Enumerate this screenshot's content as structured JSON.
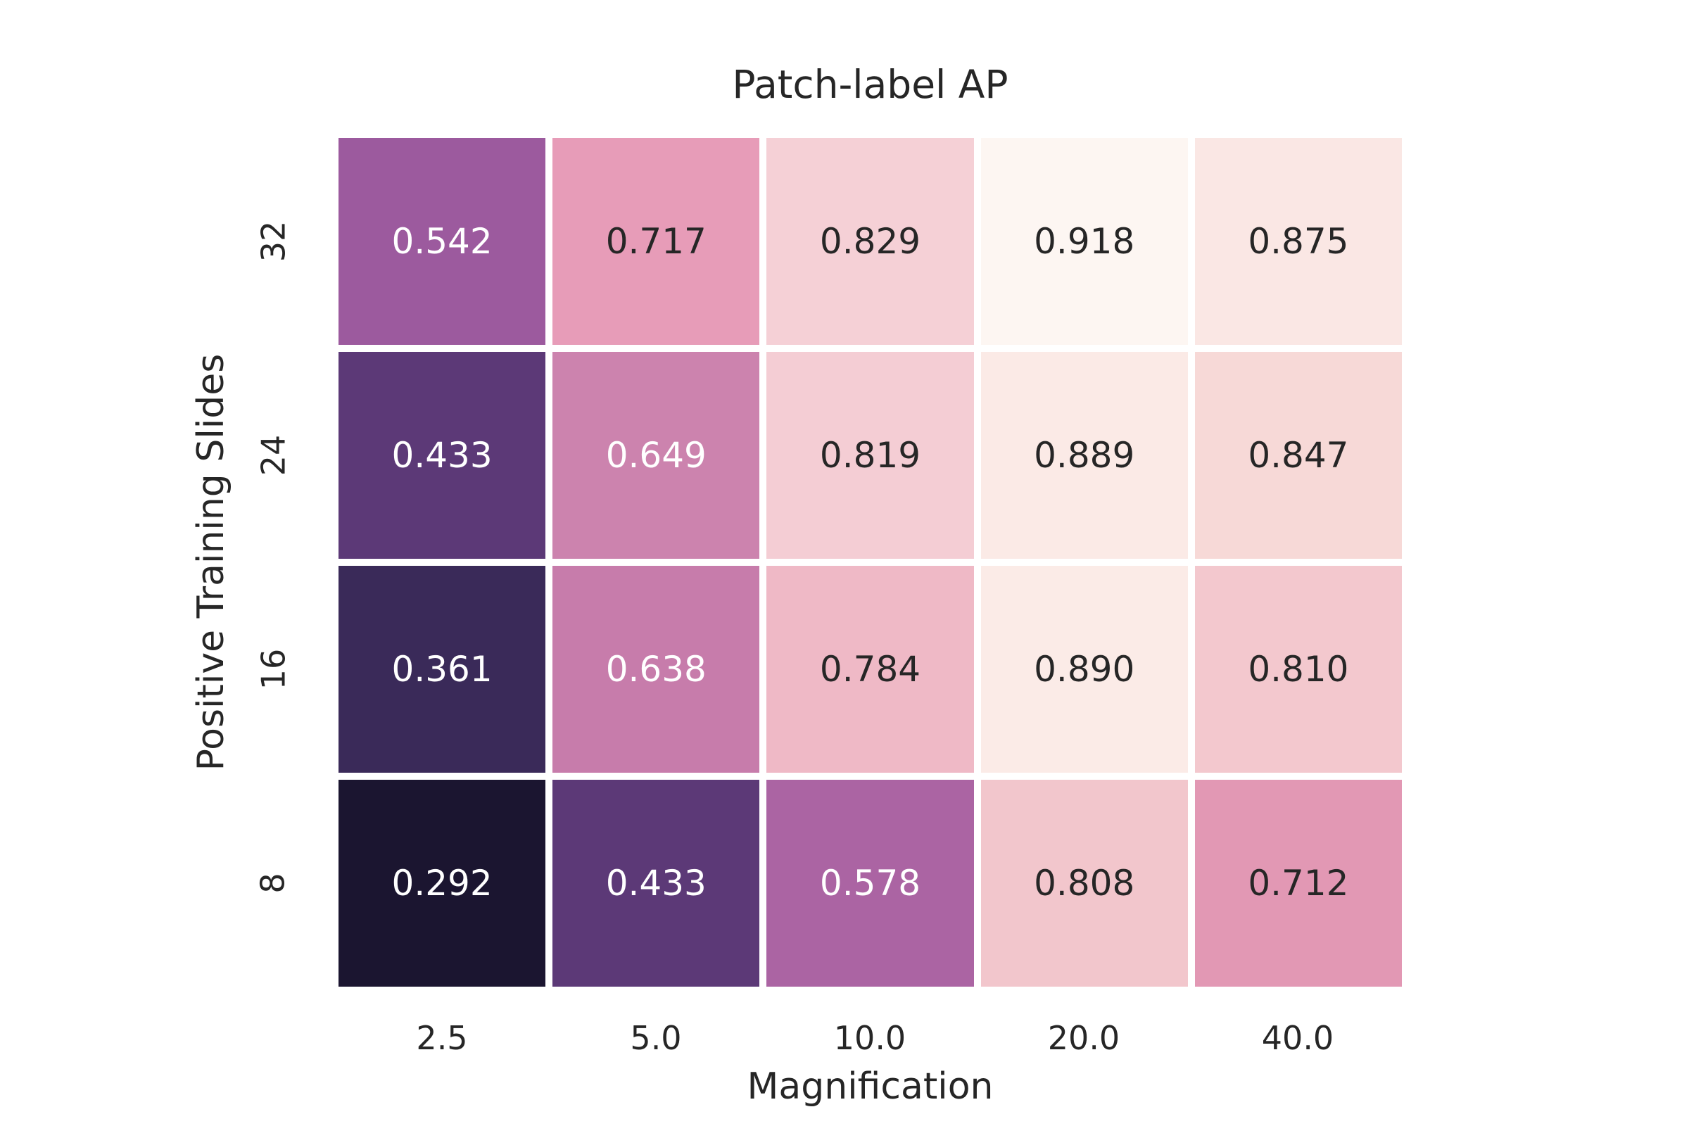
{
  "figure": {
    "background": "#ffffff",
    "text_color": "#262626"
  },
  "chart_data": {
    "type": "heatmap",
    "title": "Patch-label AP",
    "xlabel": "Magnification",
    "ylabel": "Positive Training Slides",
    "x_categories": [
      "2.5",
      "5.0",
      "10.0",
      "20.0",
      "40.0"
    ],
    "y_categories": [
      "32",
      "24",
      "16",
      "8"
    ],
    "values": [
      [
        0.542,
        0.717,
        0.829,
        0.918,
        0.875
      ],
      [
        0.433,
        0.649,
        0.819,
        0.889,
        0.847
      ],
      [
        0.361,
        0.638,
        0.784,
        0.89,
        0.81
      ],
      [
        0.292,
        0.433,
        0.578,
        0.808,
        0.712
      ]
    ],
    "value_range": [
      0.292,
      0.918
    ],
    "annotated": true,
    "legend": "none",
    "grid": "off",
    "cell_gap_color": "#ffffff",
    "rows": [
      {
        "label": "32",
        "cells": [
          {
            "value": "0.542",
            "bg": "#9c5a9e",
            "fg": "#ffffff"
          },
          {
            "value": "0.717",
            "bg": "#e79cb8",
            "fg": "#262626"
          },
          {
            "value": "0.829",
            "bg": "#f5d0d6",
            "fg": "#262626"
          },
          {
            "value": "0.918",
            "bg": "#fdf6f2",
            "fg": "#262626"
          },
          {
            "value": "0.875",
            "bg": "#fae7e4",
            "fg": "#262626"
          }
        ]
      },
      {
        "label": "24",
        "cells": [
          {
            "value": "0.433",
            "bg": "#5c3977",
            "fg": "#ffffff"
          },
          {
            "value": "0.649",
            "bg": "#cc83ae",
            "fg": "#ffffff"
          },
          {
            "value": "0.819",
            "bg": "#f4cdd4",
            "fg": "#262626"
          },
          {
            "value": "0.889",
            "bg": "#fbeae6",
            "fg": "#262626"
          },
          {
            "value": "0.847",
            "bg": "#f7d9d7",
            "fg": "#262626"
          }
        ]
      },
      {
        "label": "16",
        "cells": [
          {
            "value": "0.361",
            "bg": "#3a2a59",
            "fg": "#ffffff"
          },
          {
            "value": "0.638",
            "bg": "#c77cab",
            "fg": "#ffffff"
          },
          {
            "value": "0.784",
            "bg": "#efb9c6",
            "fg": "#262626"
          },
          {
            "value": "0.890",
            "bg": "#fbebe7",
            "fg": "#262626"
          },
          {
            "value": "0.810",
            "bg": "#f3c8ce",
            "fg": "#262626"
          }
        ]
      },
      {
        "label": "8",
        "cells": [
          {
            "value": "0.292",
            "bg": "#1b1530",
            "fg": "#ffffff"
          },
          {
            "value": "0.433",
            "bg": "#5c3977",
            "fg": "#ffffff"
          },
          {
            "value": "0.578",
            "bg": "#ab64a3",
            "fg": "#ffffff"
          },
          {
            "value": "0.808",
            "bg": "#f2c6cc",
            "fg": "#262626"
          },
          {
            "value": "0.712",
            "bg": "#e298b4",
            "fg": "#262626"
          }
        ]
      }
    ]
  }
}
